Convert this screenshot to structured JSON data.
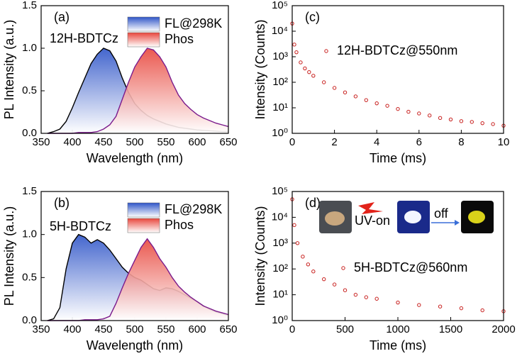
{
  "chart_data": [
    {
      "type": "area",
      "panel_label": "(a)",
      "annotations": [
        "12H-BDTCz"
      ],
      "x_label": "Wavelength (nm)",
      "y_label": "PL Intensity (a.u.)",
      "xlim": [
        350,
        650
      ],
      "xticks": [
        350,
        400,
        450,
        500,
        550,
        600,
        650
      ],
      "ylim": [
        0,
        1.5
      ],
      "yticks": [
        {
          "value": 0,
          "label": "0.0"
        },
        {
          "value": 0.5,
          "label": "0.5"
        },
        {
          "value": 1,
          "label": "1.0"
        },
        {
          "value": 1.5,
          "label": "1.5"
        }
      ],
      "x": [
        360,
        370,
        380,
        390,
        400,
        410,
        420,
        430,
        440,
        450,
        460,
        470,
        480,
        490,
        500,
        510,
        520,
        530,
        540,
        550,
        560,
        570,
        580,
        590,
        600,
        610,
        620,
        630,
        640,
        650
      ],
      "series": [
        {
          "name": "FL@298K",
          "color": "#000000",
          "fill": "#2f55c8",
          "values": [
            0.0,
            0.02,
            0.05,
            0.14,
            0.3,
            0.48,
            0.65,
            0.82,
            0.93,
            1.0,
            0.97,
            0.85,
            0.65,
            0.48,
            0.35,
            0.27,
            0.21,
            0.17,
            0.14,
            0.11,
            0.09,
            0.07,
            0.06,
            0.05,
            0.04,
            0.035,
            0.03,
            0.025,
            0.02,
            0.02
          ]
        },
        {
          "name": "Phos",
          "color": "#7a1a8c",
          "fill": "#e8463c",
          "values": [
            0.0,
            0.0,
            0.0,
            0.0,
            0.0,
            0.01,
            0.01,
            0.01,
            0.02,
            0.05,
            0.1,
            0.2,
            0.4,
            0.6,
            0.78,
            0.9,
            1.0,
            0.98,
            0.9,
            0.78,
            0.6,
            0.45,
            0.35,
            0.28,
            0.22,
            0.18,
            0.15,
            0.12,
            0.1,
            0.08
          ]
        }
      ]
    },
    {
      "type": "area",
      "panel_label": "(b)",
      "annotations": [
        "5H-BDTCz"
      ],
      "x_label": "Wavelength (nm)",
      "y_label": "PL Intensity (a.u.)",
      "xlim": [
        350,
        650
      ],
      "xticks": [
        350,
        400,
        450,
        500,
        550,
        600,
        650
      ],
      "ylim": [
        0,
        1.5
      ],
      "yticks": [
        {
          "value": 0,
          "label": "0.0"
        },
        {
          "value": 0.5,
          "label": "0.5"
        },
        {
          "value": 1,
          "label": "1.0"
        },
        {
          "value": 1.5,
          "label": "1.5"
        }
      ],
      "x": [
        360,
        370,
        380,
        390,
        400,
        410,
        420,
        430,
        440,
        450,
        460,
        470,
        480,
        490,
        500,
        510,
        520,
        530,
        540,
        550,
        560,
        570,
        580,
        590,
        600,
        610,
        620,
        630,
        640,
        650
      ],
      "series": [
        {
          "name": "FL@298K",
          "color": "#000000",
          "fill": "#2f55c8",
          "values": [
            0.0,
            0.02,
            0.15,
            0.6,
            0.9,
            1.0,
            0.97,
            0.9,
            0.94,
            0.9,
            0.82,
            0.72,
            0.62,
            0.55,
            0.5,
            0.47,
            0.42,
            0.37,
            0.35,
            0.38,
            0.37,
            0.34,
            0.3,
            0.26,
            0.22,
            0.17,
            0.13,
            0.1,
            0.08,
            0.06
          ]
        },
        {
          "name": "Phos",
          "color": "#7a1a8c",
          "fill": "#e8463c",
          "values": [
            0.0,
            0.0,
            0.0,
            0.0,
            0.0,
            0.0,
            0.01,
            0.01,
            0.01,
            0.02,
            0.05,
            0.2,
            0.38,
            0.55,
            0.7,
            0.85,
            0.95,
            0.85,
            0.72,
            0.62,
            0.5,
            0.4,
            0.33,
            0.27,
            0.22,
            0.17,
            0.14,
            0.11,
            0.09,
            0.07
          ]
        }
      ]
    },
    {
      "type": "scatter",
      "panel_label": "(c)",
      "annotations": [],
      "x_label": "Time (ms)",
      "y_label": "Intensity (Counts)",
      "log_y": true,
      "xlim": [
        0,
        10
      ],
      "xticks": [
        0,
        2,
        4,
        6,
        8,
        10
      ],
      "ylim": [
        1,
        100000
      ],
      "yticks": [
        {
          "value": 1,
          "label": "10⁰"
        },
        {
          "value": 10,
          "label": "10¹"
        },
        {
          "value": 100,
          "label": "10²"
        },
        {
          "value": 1000,
          "label": "10³"
        },
        {
          "value": 10000,
          "label": "10⁴"
        },
        {
          "value": 100000,
          "label": "10⁵"
        }
      ],
      "x": [
        0,
        0.1,
        0.2,
        0.4,
        0.6,
        0.8,
        1,
        1.5,
        2,
        2.5,
        3,
        3.5,
        4,
        4.5,
        5,
        5.5,
        6,
        6.5,
        7,
        7.5,
        8,
        8.5,
        9,
        9.5,
        10
      ],
      "series": [
        {
          "name": "12H-BDTCz@550nm",
          "color": "#c8201e",
          "values": [
            20000,
            3000,
            1500,
            600,
            350,
            250,
            180,
            100,
            60,
            40,
            28,
            20,
            15,
            12,
            9,
            7,
            6,
            5,
            4,
            3.5,
            3,
            2.8,
            2.5,
            2.3,
            2
          ]
        }
      ]
    },
    {
      "type": "scatter",
      "panel_label": "(d)",
      "annotations": [
        "UV-on",
        "off"
      ],
      "x_label": "Time (ms)",
      "y_label": "Intensity (Counts)",
      "log_y": true,
      "xlim": [
        0,
        2000
      ],
      "xticks": [
        0,
        500,
        1000,
        1500,
        2000
      ],
      "ylim": [
        1,
        100000
      ],
      "yticks": [
        {
          "value": 1,
          "label": "10⁰"
        },
        {
          "value": 10,
          "label": "10¹"
        },
        {
          "value": 100,
          "label": "10²"
        },
        {
          "value": 1000,
          "label": "10³"
        },
        {
          "value": 10000,
          "label": "10⁴"
        },
        {
          "value": 100000,
          "label": "10⁵"
        }
      ],
      "x": [
        0,
        20,
        50,
        100,
        150,
        200,
        300,
        400,
        500,
        600,
        700,
        800,
        1000,
        1200,
        1400,
        1600,
        1800,
        2000
      ],
      "series": [
        {
          "name": "5H-BDTCz@560nm",
          "color": "#c8201e",
          "values": [
            50000,
            5000,
            1000,
            300,
            150,
            80,
            40,
            25,
            15,
            10,
            8,
            7,
            5,
            4,
            3.5,
            3,
            2.5,
            2.3
          ]
        }
      ]
    }
  ]
}
